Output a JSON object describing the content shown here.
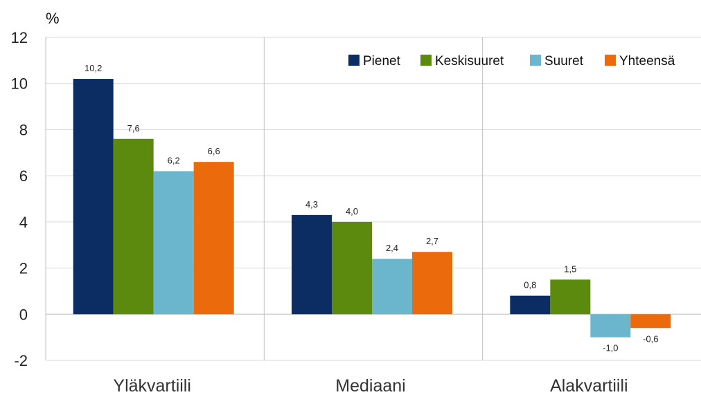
{
  "chart_data": {
    "type": "bar",
    "ylabel": "%",
    "ylim": [
      -2,
      12
    ],
    "yticks": [
      -2,
      0,
      2,
      4,
      6,
      8,
      10,
      12
    ],
    "ytick_labels": [
      "-2",
      "0",
      "2",
      "4",
      "6",
      "8",
      "10",
      "12"
    ],
    "categories": [
      "Yläkvartiili",
      "Mediaani",
      "Alakvartiili"
    ],
    "series": [
      {
        "name": "Pienet",
        "color": "#0b2d63",
        "values": [
          10.2,
          4.3,
          0.8
        ],
        "labels": [
          "10,2",
          "4,3",
          "0,8"
        ]
      },
      {
        "name": "Keskisuuret",
        "color": "#5b8a0e",
        "values": [
          7.6,
          4.0,
          1.5
        ],
        "labels": [
          "7,6",
          "4,0",
          "1,5"
        ]
      },
      {
        "name": "Suuret",
        "color": "#6bb6cc",
        "values": [
          6.2,
          2.4,
          -1.0
        ],
        "labels": [
          "6,2",
          "2,4",
          "-1,0"
        ]
      },
      {
        "name": "Yhteensä",
        "color": "#ea6a0c",
        "values": [
          6.6,
          2.7,
          -0.6
        ],
        "labels": [
          "6,6",
          "2,7",
          "-0,6"
        ]
      }
    ],
    "grid": "horizontal",
    "legend_position": "top-right"
  }
}
